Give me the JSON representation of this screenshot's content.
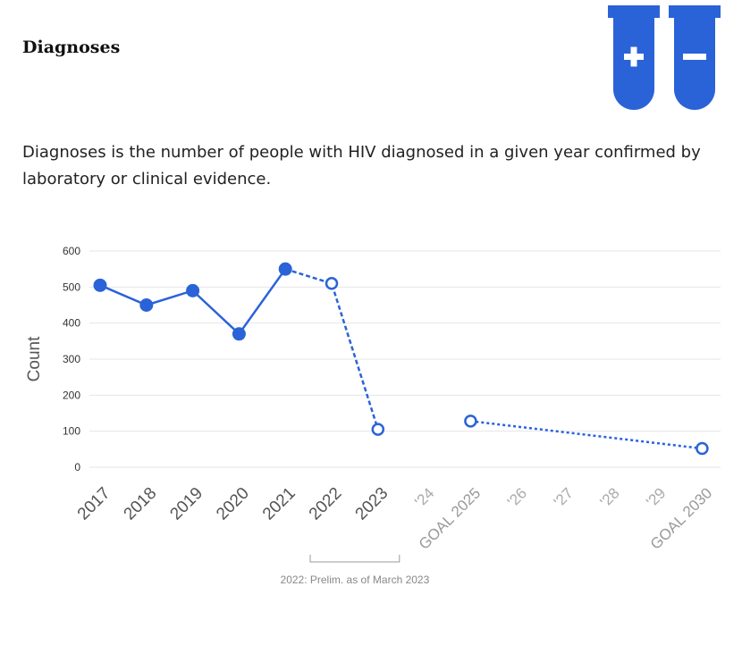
{
  "header": {
    "title": "Diagnoses",
    "description": "Diagnoses is the number of people with HIV diagnosed in a given year confirmed by laboratory or clinical evidence."
  },
  "colors": {
    "accent": "#2a63d8",
    "grid": "#e6e6e6"
  },
  "icons": {
    "logo": "test-tubes-plus-minus-icon"
  },
  "chart_data": {
    "type": "line",
    "ylabel": "Count",
    "ylim": [
      0,
      600
    ],
    "yticks": [
      0,
      100,
      200,
      300,
      400,
      500,
      600
    ],
    "grid": true,
    "x_ticks": [
      {
        "label": "2017",
        "kind": "major"
      },
      {
        "label": "2018",
        "kind": "major"
      },
      {
        "label": "2019",
        "kind": "major"
      },
      {
        "label": "2020",
        "kind": "major"
      },
      {
        "label": "2021",
        "kind": "major"
      },
      {
        "label": "2022",
        "kind": "major"
      },
      {
        "label": "2023",
        "kind": "major"
      },
      {
        "label": "'24",
        "kind": "minor"
      },
      {
        "label": "GOAL 2025",
        "kind": "goal"
      },
      {
        "label": "'26",
        "kind": "minor"
      },
      {
        "label": "'27",
        "kind": "minor"
      },
      {
        "label": "'28",
        "kind": "minor"
      },
      {
        "label": "'29",
        "kind": "minor"
      },
      {
        "label": "GOAL 2030",
        "kind": "goal"
      }
    ],
    "series": [
      {
        "style": "solid-filled",
        "points": [
          {
            "x": 2017,
            "y": 505
          },
          {
            "x": 2018,
            "y": 450
          },
          {
            "x": 2019,
            "y": 490
          },
          {
            "x": 2020,
            "y": 370
          },
          {
            "x": 2021,
            "y": 550
          }
        ]
      },
      {
        "style": "dashed-hollow",
        "points": [
          {
            "x": 2021,
            "y": 550
          },
          {
            "x": 2022,
            "y": 510
          },
          {
            "x": 2023,
            "y": 105
          }
        ]
      },
      {
        "style": "dotted-hollow",
        "points": [
          {
            "x": 2025,
            "y": 128
          },
          {
            "x": 2030,
            "y": 52
          }
        ]
      }
    ],
    "annotation": {
      "text": "2022: Prelim. as of March 2023",
      "from": 2022,
      "to": 2023
    }
  }
}
